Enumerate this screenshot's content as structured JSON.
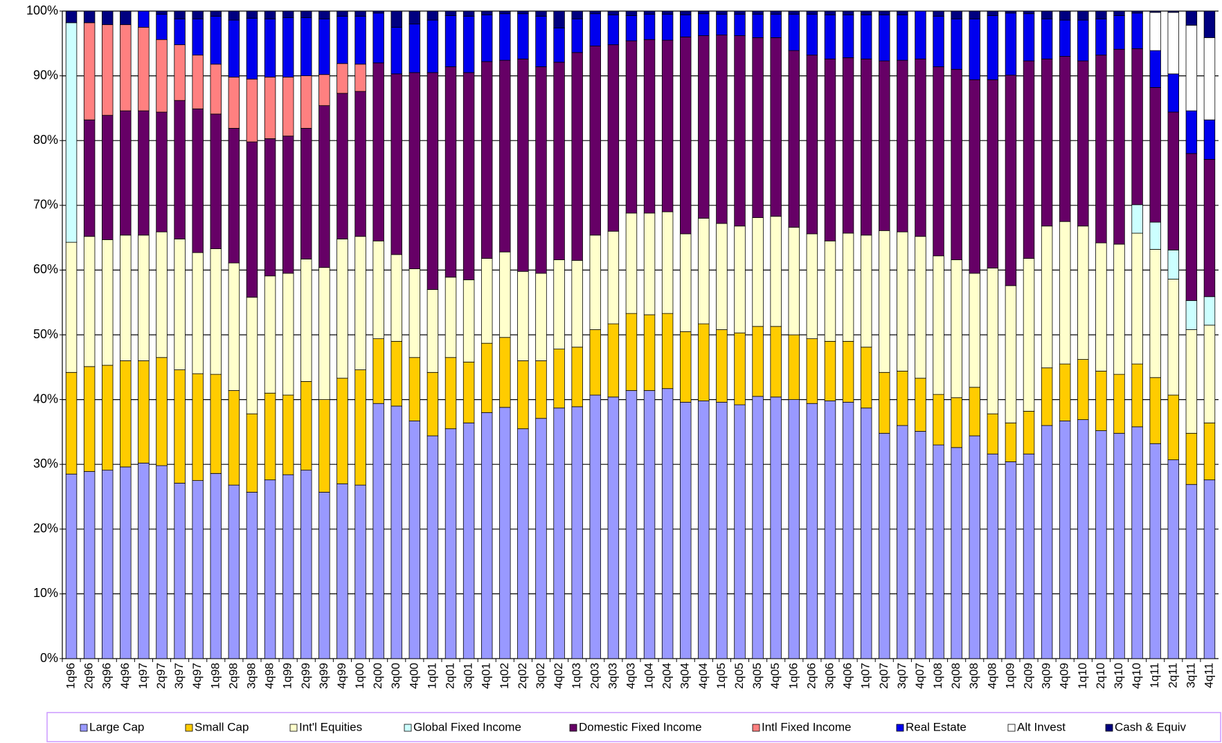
{
  "chart_data": {
    "type": "stacked_bar",
    "categories": [
      "1q96",
      "2q96",
      "3q96",
      "4q96",
      "1q97",
      "2q97",
      "3q97",
      "4q97",
      "1q98",
      "2q98",
      "3q98",
      "4q98",
      "1q99",
      "2q99",
      "3q99",
      "4q99",
      "1q00",
      "2q00",
      "3q00",
      "4q00",
      "1q01",
      "2q01",
      "3q01",
      "4q01",
      "1q02",
      "2q02",
      "3q02",
      "4q02",
      "1q03",
      "2q03",
      "3q03",
      "4q03",
      "1q04",
      "2q04",
      "3q04",
      "4q04",
      "1q05",
      "2q05",
      "3q05",
      "4q05",
      "1q06",
      "2q06",
      "3q06",
      "4q06",
      "1q07",
      "2q07",
      "3q07",
      "4q07",
      "1q08",
      "2q08",
      "3q08",
      "4q08",
      "1q09",
      "2q09",
      "3q09",
      "4q09",
      "1q10",
      "2q10",
      "3q10",
      "4q10",
      "1q11",
      "2q11",
      "3q11",
      "4q11"
    ],
    "series": [
      {
        "name": "Large Cap",
        "color": "#9999ff",
        "values": [
          28.5,
          28.9,
          29.1,
          29.6,
          30.2,
          29.8,
          27.1,
          27.5,
          28.6,
          26.8,
          25.7,
          27.6,
          28.4,
          29.1,
          25.7,
          27.0,
          26.8,
          39.4,
          39.0,
          36.7,
          34.4,
          35.5,
          36.4,
          38.0,
          38.8,
          35.5,
          37.1,
          38.7,
          38.9,
          40.7,
          40.4,
          41.4,
          41.4,
          41.7,
          39.6,
          39.8,
          39.6,
          39.2,
          40.5,
          40.4,
          40.0,
          39.4,
          39.8,
          39.6,
          38.7,
          34.8,
          36.0,
          35.1,
          33.0,
          32.6,
          34.4,
          31.6,
          30.4,
          31.6,
          36.0,
          36.7,
          36.9,
          35.2,
          34.8,
          35.8,
          33.2,
          30.7,
          26.9,
          27.6
        ]
      },
      {
        "name": "Small Cap",
        "color": "#ffcc00",
        "values": [
          15.7,
          16.2,
          16.2,
          16.4,
          15.8,
          16.7,
          17.5,
          16.5,
          15.3,
          14.6,
          12.1,
          13.4,
          12.3,
          13.7,
          14.3,
          16.3,
          17.8,
          10.0,
          10.0,
          9.8,
          9.8,
          11.0,
          9.4,
          10.7,
          10.8,
          10.5,
          8.9,
          9.1,
          9.2,
          10.1,
          11.3,
          11.9,
          11.7,
          11.6,
          10.9,
          11.9,
          11.2,
          11.1,
          10.8,
          10.9,
          10.0,
          10.0,
          9.2,
          9.4,
          9.4,
          9.4,
          8.4,
          8.2,
          7.8,
          7.7,
          7.5,
          6.2,
          6.0,
          6.6,
          8.9,
          8.8,
          9.3,
          9.2,
          9.1,
          9.7,
          10.2,
          10.0,
          7.9,
          8.8
        ]
      },
      {
        "name": "Int'l Equities",
        "color": "#ffffcc",
        "values": [
          20.1,
          20.1,
          19.4,
          19.4,
          19.4,
          19.4,
          20.2,
          18.7,
          19.4,
          19.7,
          18.0,
          18.1,
          18.8,
          18.9,
          20.4,
          21.5,
          20.6,
          15.1,
          13.4,
          13.7,
          12.8,
          12.4,
          12.7,
          13.1,
          13.2,
          13.8,
          13.5,
          13.8,
          13.4,
          14.6,
          14.3,
          15.5,
          15.7,
          15.7,
          15.1,
          16.3,
          16.4,
          16.5,
          16.8,
          17.0,
          16.6,
          16.2,
          15.5,
          16.7,
          17.3,
          21.9,
          21.5,
          21.9,
          21.4,
          21.3,
          17.6,
          22.5,
          21.2,
          23.6,
          21.9,
          22.0,
          20.6,
          19.8,
          20.1,
          20.2,
          19.8,
          17.9,
          16.0,
          15.1
        ]
      },
      {
        "name": "Global Fixed Income",
        "color": "#ccffff",
        "values": [
          33.9,
          0,
          0,
          0,
          0,
          0,
          0,
          0,
          0,
          0,
          0,
          0,
          0,
          0,
          0,
          0,
          0,
          0,
          0,
          0,
          0,
          0,
          0,
          0,
          0,
          0,
          0,
          0,
          0,
          0,
          0,
          0,
          0,
          0,
          0,
          0,
          0,
          0,
          0,
          0,
          0,
          0,
          0,
          0,
          0,
          0,
          0,
          0,
          0,
          0,
          0,
          0,
          0,
          0,
          0,
          0,
          0,
          0,
          0,
          4.4,
          4.2,
          4.5,
          4.5,
          4.4
        ]
      },
      {
        "name": "Domestic Fixed Income",
        "color": "#660066",
        "values": [
          0,
          18.0,
          19.2,
          19.2,
          19.2,
          18.5,
          21.4,
          22.2,
          20.8,
          20.8,
          24.0,
          21.2,
          21.2,
          20.2,
          25.0,
          22.5,
          22.4,
          27.5,
          27.9,
          30.3,
          33.5,
          32.5,
          32.0,
          30.4,
          29.6,
          32.8,
          31.9,
          30.5,
          32.1,
          29.2,
          28.8,
          26.6,
          26.8,
          26.5,
          30.4,
          28.2,
          29.1,
          29.4,
          27.8,
          27.6,
          27.3,
          27.6,
          28.1,
          27.1,
          27.2,
          26.2,
          26.5,
          27.4,
          29.2,
          29.4,
          29.9,
          29.1,
          32.5,
          30.5,
          25.8,
          25.5,
          25.5,
          29.0,
          30.1,
          24.1,
          20.8,
          21.3,
          22.7,
          21.2
        ]
      },
      {
        "name": "Intl Fixed Income",
        "color": "#ff8080",
        "values": [
          0,
          15.0,
          14.0,
          13.3,
          12.9,
          11.2,
          8.6,
          8.3,
          7.7,
          7.9,
          9.7,
          9.5,
          9.1,
          8.1,
          4.8,
          4.6,
          4.2,
          0,
          0,
          0,
          0,
          0,
          0,
          0,
          0,
          0,
          0,
          0,
          0,
          0,
          0,
          0,
          0,
          0,
          0,
          0,
          0,
          0,
          0,
          0,
          0,
          0,
          0,
          0,
          0,
          0,
          0,
          0,
          0,
          0,
          0,
          0,
          0,
          0,
          0,
          0,
          0,
          0,
          0,
          0,
          0,
          0,
          0,
          0
        ]
      },
      {
        "name": "Real Estate",
        "color": "#0000ee",
        "values": [
          0,
          0,
          0,
          0,
          2.5,
          3.9,
          4.0,
          5.6,
          7.4,
          8.8,
          9.4,
          9.0,
          9.2,
          9.0,
          8.6,
          7.3,
          7.4,
          7.7,
          7.2,
          7.5,
          8.1,
          7.9,
          8.7,
          7.2,
          7.2,
          7.0,
          7.8,
          5.3,
          5.2,
          5.0,
          4.6,
          3.9,
          3.9,
          4.0,
          3.4,
          3.4,
          3.2,
          3.3,
          3.6,
          3.6,
          5.6,
          6.3,
          6.8,
          6.6,
          6.8,
          7.1,
          7.0,
          7.4,
          7.8,
          7.8,
          9.4,
          9.9,
          9.6,
          7.3,
          6.2,
          5.6,
          6.3,
          5.6,
          5.2,
          5.5,
          5.7,
          5.9,
          6.6,
          6.1
        ]
      },
      {
        "name": "Alt Invest",
        "color": "#ffffff",
        "values": [
          0,
          0,
          0,
          0,
          0,
          0,
          0,
          0,
          0,
          0,
          0,
          0,
          0,
          0,
          0,
          0,
          0,
          0,
          0,
          0,
          0,
          0,
          0,
          0,
          0,
          0,
          0,
          0,
          0,
          0,
          0,
          0,
          0,
          0,
          0,
          0,
          0,
          0,
          0,
          0,
          0,
          0,
          0,
          0,
          0,
          0,
          0,
          0,
          0,
          0,
          0,
          0,
          0,
          0,
          0,
          0,
          0,
          0,
          0,
          0,
          5.9,
          9.5,
          13.2,
          12.7
        ]
      },
      {
        "name": "Cash & Equiv",
        "color": "#000080",
        "values": [
          1.8,
          1.8,
          2.1,
          2.1,
          0,
          0.5,
          1.2,
          1.2,
          0.8,
          1.4,
          1.1,
          1.2,
          1.0,
          1.0,
          1.2,
          0.8,
          0.8,
          0.3,
          2.5,
          2.0,
          1.4,
          0.7,
          0.8,
          0.6,
          0.4,
          0.4,
          0.8,
          2.6,
          1.2,
          0.4,
          0.6,
          0.7,
          0.5,
          0.5,
          0.6,
          0.4,
          0.5,
          0.5,
          0.5,
          0.5,
          0.5,
          0.5,
          0.6,
          0.6,
          0.6,
          0.6,
          0.6,
          0,
          0.8,
          1.2,
          1.2,
          0.7,
          0.3,
          0.4,
          1.2,
          1.4,
          1.4,
          1.2,
          0.7,
          0.3,
          0.2,
          0.2,
          2.2,
          4.1
        ]
      }
    ],
    "ylim": [
      0,
      100
    ],
    "yticks": [
      {
        "value": 0,
        "label": "0%"
      },
      {
        "value": 10,
        "label": "10%"
      },
      {
        "value": 20,
        "label": "20%"
      },
      {
        "value": 30,
        "label": "30%"
      },
      {
        "value": 40,
        "label": "40%"
      },
      {
        "value": 50,
        "label": "50%"
      },
      {
        "value": 60,
        "label": "60%"
      },
      {
        "value": 70,
        "label": "70%"
      },
      {
        "value": 80,
        "label": "80%"
      },
      {
        "value": 90,
        "label": "90%"
      },
      {
        "value": 100,
        "label": "100%"
      }
    ],
    "grid": true,
    "legend": "bottom"
  }
}
